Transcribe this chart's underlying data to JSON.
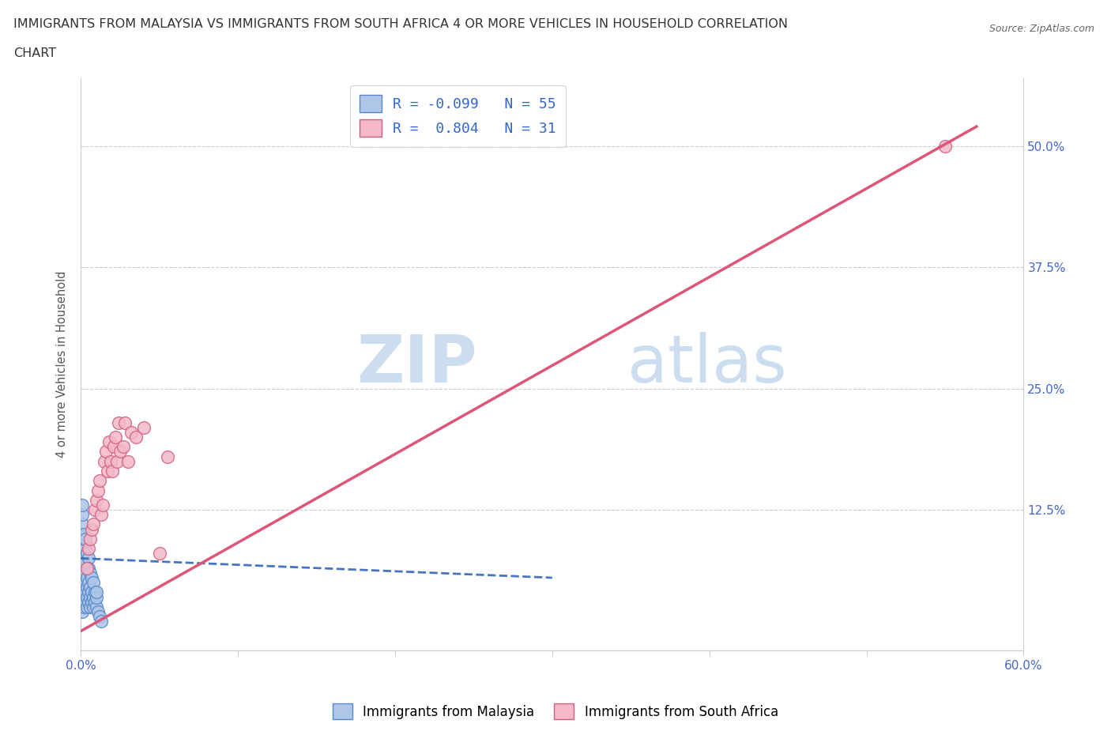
{
  "title_line1": "IMMIGRANTS FROM MALAYSIA VS IMMIGRANTS FROM SOUTH AFRICA 4 OR MORE VEHICLES IN HOUSEHOLD CORRELATION",
  "title_line2": "CHART",
  "source": "Source: ZipAtlas.com",
  "ylabel": "4 or more Vehicles in Household",
  "xlim": [
    0.0,
    0.6
  ],
  "ylim": [
    -0.02,
    0.57
  ],
  "xticks": [
    0.0,
    0.1,
    0.2,
    0.3,
    0.4,
    0.5,
    0.6
  ],
  "xticklabels": [
    "0.0%",
    "",
    "",
    "",
    "",
    "",
    "60.0%"
  ],
  "yticks": [
    0.0,
    0.125,
    0.25,
    0.375,
    0.5
  ],
  "yticklabels": [
    "",
    "12.5%",
    "25.0%",
    "37.5%",
    "50.0%"
  ],
  "grid_yticks": [
    0.125,
    0.25,
    0.375,
    0.5
  ],
  "malaysia_color": "#aec6e8",
  "malaysia_edge_color": "#5588cc",
  "south_africa_color": "#f4b8c8",
  "south_africa_edge_color": "#d06080",
  "malaysia_R": -0.099,
  "malaysia_N": 55,
  "south_africa_R": 0.804,
  "south_africa_N": 31,
  "malaysia_line_color": "#3366bb",
  "south_africa_line_color": "#dd5577",
  "watermark_zip": "ZIP",
  "watermark_atlas": "atlas",
  "watermark_color": "#ccddf0",
  "malaysia_x": [
    0.001,
    0.001,
    0.001,
    0.001,
    0.001,
    0.001,
    0.001,
    0.001,
    0.001,
    0.002,
    0.002,
    0.002,
    0.002,
    0.002,
    0.002,
    0.003,
    0.003,
    0.003,
    0.003,
    0.004,
    0.004,
    0.004,
    0.004,
    0.005,
    0.005,
    0.005,
    0.006,
    0.006,
    0.006,
    0.007,
    0.007,
    0.008,
    0.008,
    0.009,
    0.009,
    0.01,
    0.01,
    0.011,
    0.012,
    0.013,
    0.001,
    0.001,
    0.001,
    0.001,
    0.002,
    0.002,
    0.003,
    0.003,
    0.004,
    0.005,
    0.005,
    0.006,
    0.007,
    0.008,
    0.01
  ],
  "malaysia_y": [
    0.02,
    0.03,
    0.04,
    0.05,
    0.06,
    0.065,
    0.07,
    0.075,
    0.08,
    0.025,
    0.035,
    0.045,
    0.055,
    0.065,
    0.07,
    0.03,
    0.04,
    0.05,
    0.06,
    0.025,
    0.035,
    0.045,
    0.055,
    0.03,
    0.04,
    0.05,
    0.025,
    0.035,
    0.045,
    0.03,
    0.04,
    0.025,
    0.035,
    0.03,
    0.04,
    0.025,
    0.035,
    0.02,
    0.015,
    0.01,
    0.1,
    0.11,
    0.12,
    0.13,
    0.09,
    0.1,
    0.085,
    0.095,
    0.08,
    0.075,
    0.065,
    0.06,
    0.055,
    0.05,
    0.04
  ],
  "south_africa_x": [
    0.004,
    0.005,
    0.006,
    0.007,
    0.008,
    0.009,
    0.01,
    0.011,
    0.012,
    0.013,
    0.014,
    0.015,
    0.016,
    0.017,
    0.018,
    0.019,
    0.02,
    0.021,
    0.022,
    0.023,
    0.024,
    0.025,
    0.027,
    0.028,
    0.03,
    0.032,
    0.035,
    0.04,
    0.05,
    0.055,
    0.55
  ],
  "south_africa_y": [
    0.065,
    0.085,
    0.095,
    0.105,
    0.11,
    0.125,
    0.135,
    0.145,
    0.155,
    0.12,
    0.13,
    0.175,
    0.185,
    0.165,
    0.195,
    0.175,
    0.165,
    0.19,
    0.2,
    0.175,
    0.215,
    0.185,
    0.19,
    0.215,
    0.175,
    0.205,
    0.2,
    0.21,
    0.08,
    0.18,
    0.5
  ],
  "malaysia_line_x": [
    0.0,
    0.3
  ],
  "malaysia_line_y": [
    0.075,
    0.055
  ],
  "south_africa_line_x": [
    0.0,
    0.57
  ],
  "south_africa_line_y": [
    0.0,
    0.52
  ]
}
